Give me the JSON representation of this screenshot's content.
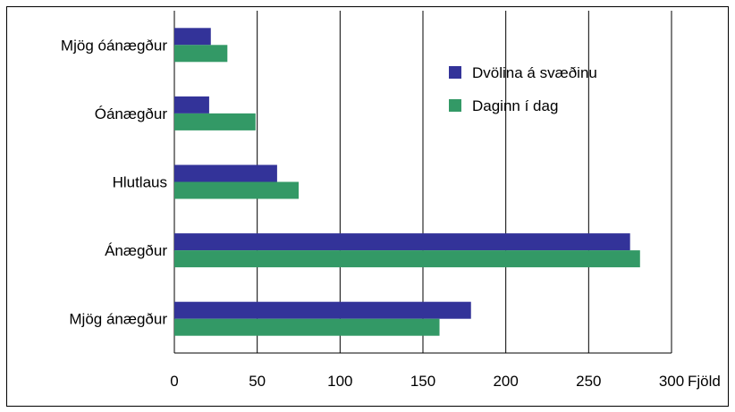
{
  "chart_data": {
    "type": "bar",
    "orientation": "horizontal",
    "categories": [
      "Mjög óánægður",
      "Óánægður",
      "Hlutlaus",
      "Ánægður",
      "Mjög ánægður"
    ],
    "series": [
      {
        "name": "Dvölina á svæðinu",
        "color": "#333399",
        "values": [
          22,
          21,
          62,
          275,
          179
        ]
      },
      {
        "name": "Daginn í dag",
        "color": "#339966",
        "values": [
          32,
          49,
          75,
          281,
          160
        ]
      }
    ],
    "xlim": [
      0,
      300
    ],
    "xticks": [
      0,
      50,
      100,
      150,
      200,
      250,
      300
    ],
    "xlabel": "Fjöld",
    "grid": "vertical",
    "legend": "top-right"
  }
}
